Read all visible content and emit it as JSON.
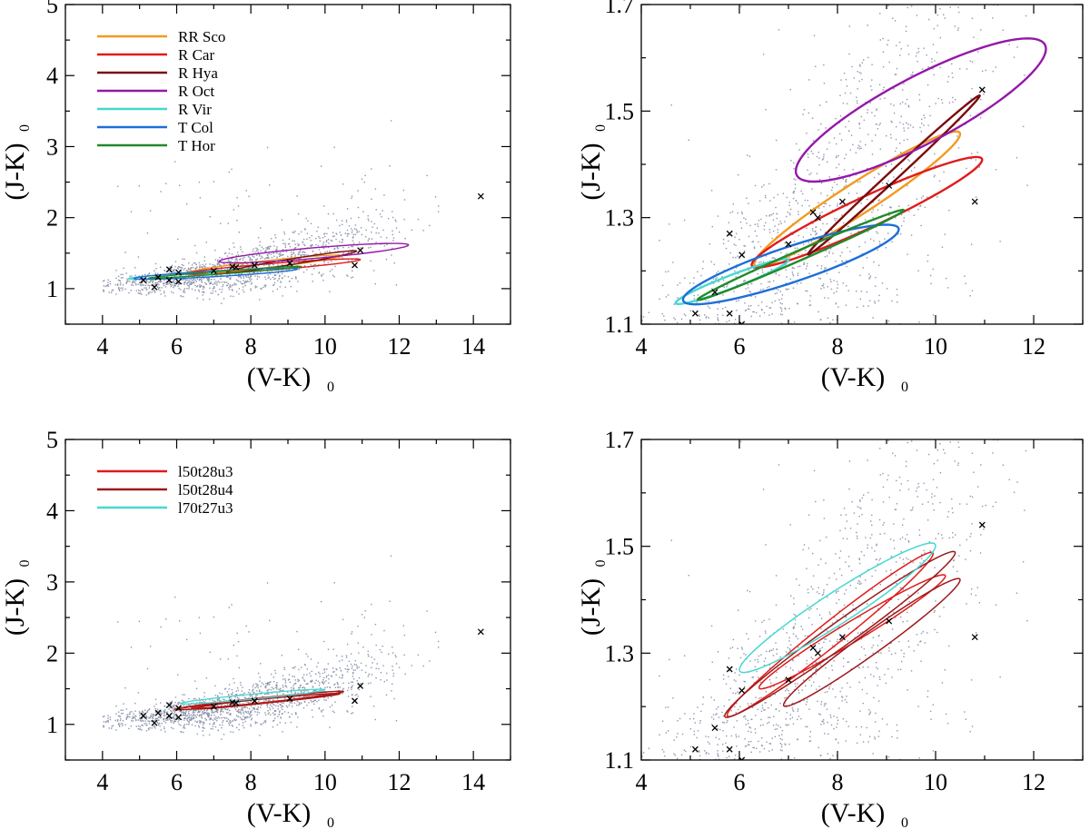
{
  "chart_data": [
    {
      "id": "top-left",
      "type": "scatter",
      "xlabel": "(V-K)",
      "xlabel_sub": "0",
      "ylabel": "(J-K)",
      "ylabel_sub": "0",
      "xlim": [
        3,
        15
      ],
      "ylim": [
        0.5,
        5
      ],
      "xticks": [
        4,
        6,
        8,
        10,
        12,
        14
      ],
      "yticks": [
        1,
        2,
        3,
        4,
        5
      ],
      "legend_position": "top-left",
      "legend": [
        "RR Sco",
        "R Car",
        "R Hya",
        "R Oct",
        "R Vir",
        "T Col",
        "T Hor"
      ],
      "ellipse_stroke": 1.4,
      "ellipses": [
        {
          "name": "RR Sco",
          "color": "#f29a1f",
          "cx": 8.35,
          "cy": 1.34,
          "a": 2.1,
          "b": 0.05,
          "angle_data": 0.058
        },
        {
          "name": "R Car",
          "color": "#e01b1b",
          "cx": 8.6,
          "cy": 1.31,
          "a": 2.35,
          "b": 0.045,
          "angle_data": 0.042
        },
        {
          "name": "R Hya",
          "color": "#7a0c0c",
          "cx": 9.1,
          "cy": 1.38,
          "a": 1.75,
          "b": 0.04,
          "angle_data": 0.085
        },
        {
          "name": "R Oct",
          "color": "#9418a8",
          "cx": 9.7,
          "cy": 1.5,
          "a": 2.55,
          "b": 0.075,
          "angle_data": 0.045
        },
        {
          "name": "R Vir",
          "color": "#46d8d0",
          "cx": 5.85,
          "cy": 1.18,
          "a": 1.15,
          "b": 0.025,
          "angle_data": 0.035
        },
        {
          "name": "T Col",
          "color": "#1d6fd8",
          "cx": 7.05,
          "cy": 1.21,
          "a": 2.2,
          "b": 0.04,
          "angle_data": 0.03
        },
        {
          "name": "T Hor",
          "color": "#1f8a2a",
          "cx": 7.3,
          "cy": 1.23,
          "a": 2.05,
          "b": 0.02,
          "angle_data": 0.04
        }
      ]
    },
    {
      "id": "top-right",
      "type": "scatter",
      "xlabel": "(V-K)",
      "xlabel_sub": "0",
      "ylabel": "(J-K)",
      "ylabel_sub": "0",
      "xlim": [
        4,
        13
      ],
      "ylim": [
        1.1,
        1.7
      ],
      "xticks": [
        4,
        6,
        8,
        10,
        12
      ],
      "yticks": [
        1.1,
        1.3,
        1.5,
        1.7
      ],
      "ellipse_stroke": 2.4,
      "ellipses": [
        {
          "name": "RR Sco",
          "color": "#f29a1f",
          "cx": 8.4,
          "cy": 1.335,
          "a": 2.1,
          "b": 0.035,
          "angle_data": 0.058
        },
        {
          "name": "R Car",
          "color": "#e01b1b",
          "cx": 8.6,
          "cy": 1.31,
          "a": 2.35,
          "b": 0.032,
          "angle_data": 0.042
        },
        {
          "name": "R Hya",
          "color": "#7a0c0c",
          "cx": 9.15,
          "cy": 1.38,
          "a": 1.75,
          "b": 0.012,
          "angle_data": 0.085
        },
        {
          "name": "R Oct",
          "color": "#9418a8",
          "cx": 9.7,
          "cy": 1.502,
          "a": 2.55,
          "b": 0.07,
          "angle_data": 0.045
        },
        {
          "name": "R Vir",
          "color": "#46d8d0",
          "cx": 5.85,
          "cy": 1.18,
          "a": 1.15,
          "b": 0.013,
          "angle_data": 0.035
        },
        {
          "name": "T Col",
          "color": "#1d6fd8",
          "cx": 7.05,
          "cy": 1.212,
          "a": 2.2,
          "b": 0.035,
          "angle_data": 0.03
        },
        {
          "name": "T Hor",
          "color": "#1f8a2a",
          "cx": 7.25,
          "cy": 1.23,
          "a": 2.1,
          "b": 0.01,
          "angle_data": 0.04
        }
      ]
    },
    {
      "id": "bottom-left",
      "type": "scatter",
      "xlabel": "(V-K)",
      "xlabel_sub": "0",
      "ylabel": "(J-K)",
      "ylabel_sub": "0",
      "xlim": [
        3,
        15
      ],
      "ylim": [
        0.5,
        5
      ],
      "xticks": [
        4,
        6,
        8,
        10,
        12,
        14
      ],
      "yticks": [
        1,
        2,
        3,
        4,
        5
      ],
      "legend_position": "top-left",
      "legend": [
        "l50t28u3",
        "l50t28u4",
        "l70t27u3"
      ],
      "ellipse_stroke": 1.3,
      "ellipses": [
        {
          "name": "l50t28u3",
          "color": "#e01b1b",
          "cx": 8.2,
          "cy": 1.335,
          "a": 2.25,
          "b": 0.035,
          "angle_data": 0.055
        },
        {
          "name": "l50t28u3",
          "color": "#e01b1b",
          "cx": 8.4,
          "cy": 1.33,
          "a": 2.0,
          "b": 0.03,
          "angle_data": 0.05
        },
        {
          "name": "l50t28u4",
          "color": "#9e1a1a",
          "cx": 8.5,
          "cy": 1.34,
          "a": 2.0,
          "b": 0.035,
          "angle_data": 0.06
        },
        {
          "name": "l50t28u4",
          "color": "#9e1a1a",
          "cx": 8.2,
          "cy": 1.32,
          "a": 2.2,
          "b": 0.03,
          "angle_data": 0.05
        },
        {
          "name": "l70t27u3",
          "color": "#46d8d0",
          "cx": 8.05,
          "cy": 1.39,
          "a": 1.95,
          "b": 0.035,
          "angle_data": 0.05
        }
      ]
    },
    {
      "id": "bottom-right",
      "type": "scatter",
      "xlabel": "(V-K)",
      "xlabel_sub": "0",
      "ylabel": "(J-K)",
      "ylabel_sub": "0",
      "xlim": [
        4,
        13
      ],
      "ylim": [
        1.1,
        1.7
      ],
      "xticks": [
        4,
        6,
        8,
        10,
        12
      ],
      "yticks": [
        1.1,
        1.3,
        1.5,
        1.7
      ],
      "ellipse_stroke": 1.5,
      "ellipses": [
        {
          "name": "l50t28u3",
          "color": "#e01b1b",
          "cx": 7.85,
          "cy": 1.335,
          "a": 2.1,
          "b": 0.028,
          "angle_data": 0.072
        },
        {
          "name": "l50t28u3",
          "color": "#e01b1b",
          "cx": 8.3,
          "cy": 1.34,
          "a": 1.9,
          "b": 0.022,
          "angle_data": 0.055
        },
        {
          "name": "l50t28u4",
          "color": "#9e1a1a",
          "cx": 8.05,
          "cy": 1.335,
          "a": 2.35,
          "b": 0.028,
          "angle_data": 0.065
        },
        {
          "name": "l50t28u4",
          "color": "#9e1a1a",
          "cx": 8.7,
          "cy": 1.32,
          "a": 1.8,
          "b": 0.025,
          "angle_data": 0.065
        },
        {
          "name": "l70t27u3",
          "color": "#46d8d0",
          "cx": 8.0,
          "cy": 1.385,
          "a": 2.0,
          "b": 0.035,
          "angle_data": 0.058
        }
      ]
    }
  ],
  "crosses": {
    "note": "same target star positions in all panels",
    "points": [
      [
        5.1,
        1.12
      ],
      [
        5.4,
        1.02
      ],
      [
        5.5,
        1.16
      ],
      [
        5.8,
        1.27
      ],
      [
        5.8,
        1.12
      ],
      [
        6.05,
        1.23
      ],
      [
        6.05,
        1.1
      ],
      [
        7.0,
        1.25
      ],
      [
        7.6,
        1.3
      ],
      [
        7.5,
        1.31
      ],
      [
        8.1,
        1.33
      ],
      [
        9.05,
        1.36
      ],
      [
        10.8,
        1.33
      ],
      [
        10.95,
        1.54
      ],
      [
        14.2,
        2.3
      ]
    ]
  },
  "background_points": {
    "description": "dense cloud of ~1500 small grey-blue dots along the (V-K)-(J-K) sequence",
    "color": "#8f96ad",
    "count": 1500
  },
  "colors": {
    "axis": "#000000",
    "cross": "#000000"
  }
}
